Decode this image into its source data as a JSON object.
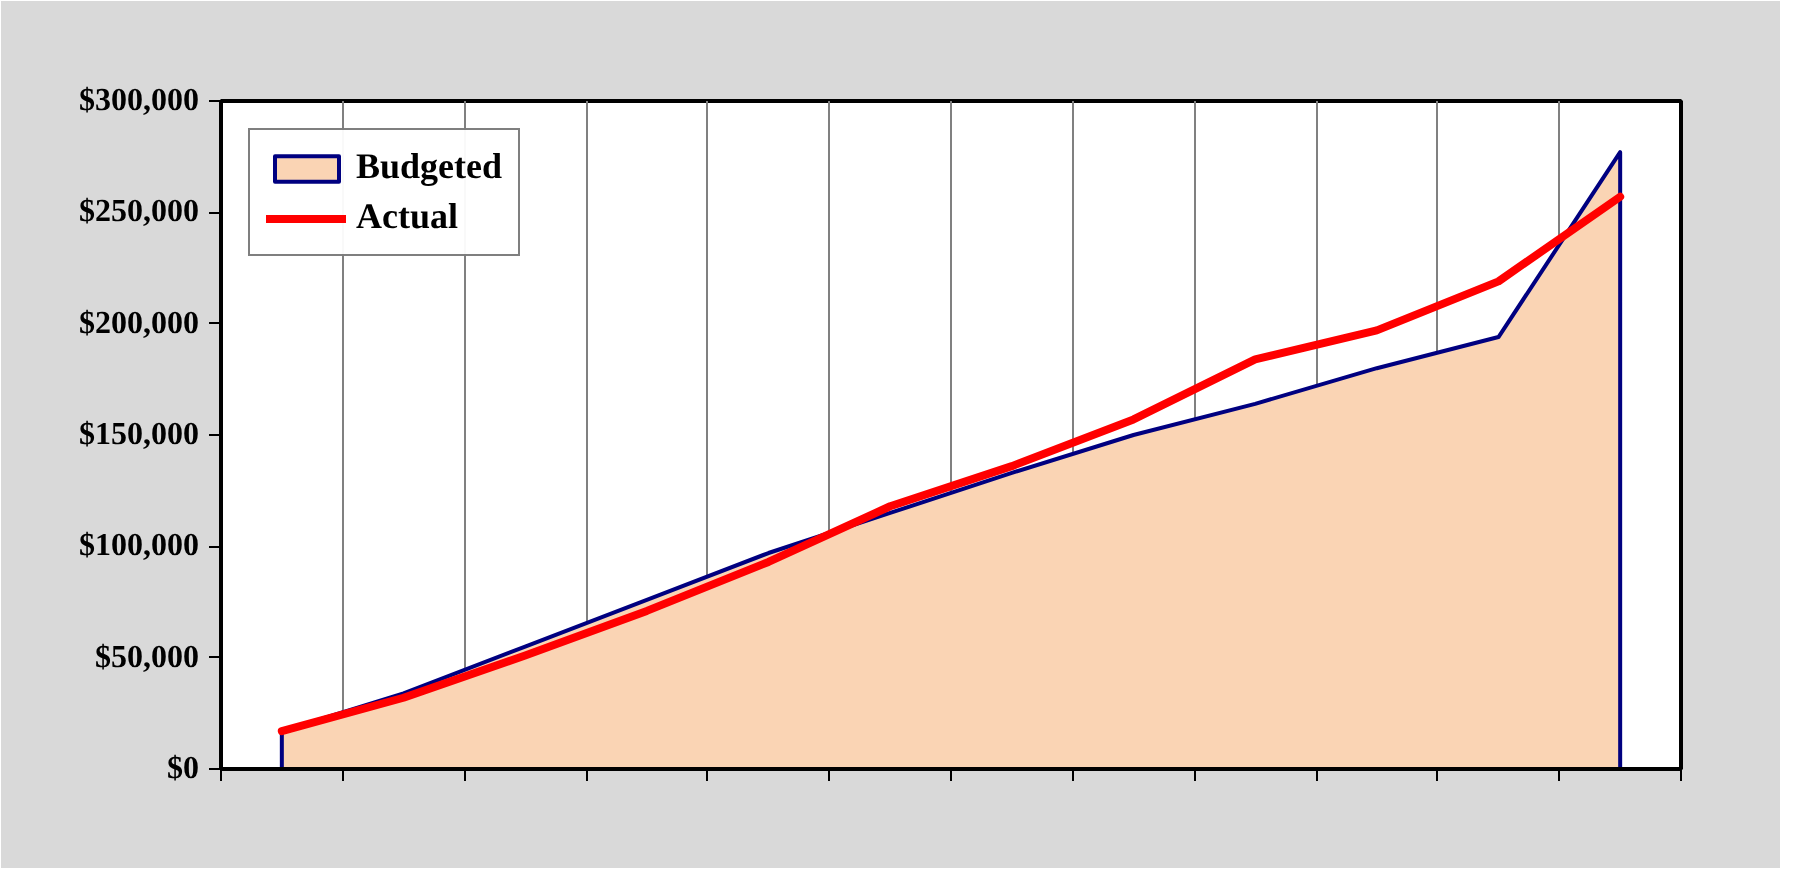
{
  "chart_data": {
    "type": "area",
    "categories": [
      null,
      null,
      null,
      null,
      null,
      null,
      null,
      null,
      null,
      null,
      null,
      null
    ],
    "series": [
      {
        "name": "Budgeted",
        "color": "#fad4b4",
        "values": [
          17000,
          34000,
          55000,
          76000,
          97000,
          115000,
          133000,
          150000,
          164000,
          180000,
          194000,
          277000
        ]
      },
      {
        "name": "Actual",
        "type": "line",
        "color": "#ff0000",
        "values": [
          17000,
          32000,
          51000,
          71000,
          93000,
          118000,
          136000,
          157000,
          184000,
          197000,
          219000,
          257000
        ]
      }
    ],
    "ylim": [
      0,
      300000
    ],
    "yticks": [
      {
        "value": 0,
        "label": "$0"
      },
      {
        "value": 50000,
        "label": "$50,000"
      },
      {
        "value": 100000,
        "label": "$100,000"
      },
      {
        "value": 150000,
        "label": "$150,000"
      },
      {
        "value": 200000,
        "label": "$200,000"
      },
      {
        "value": 250000,
        "label": "$250,000"
      },
      {
        "value": 300000,
        "label": "$300,000"
      }
    ],
    "grid": "x",
    "legend": "top left",
    "tick_labels": "y"
  }
}
